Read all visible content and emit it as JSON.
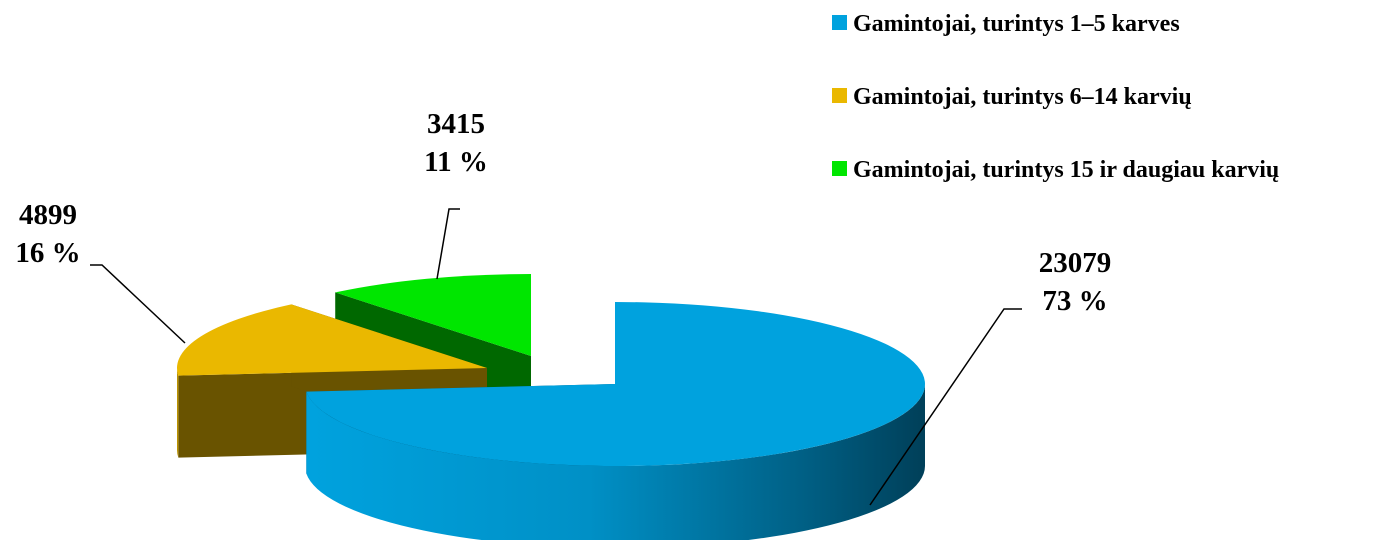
{
  "chart_data": {
    "type": "pie",
    "title": "",
    "three_d": true,
    "exploded": true,
    "legend_position": "top-right",
    "slices": [
      {
        "label": "Gamintojai, turintys 1–5 karves",
        "value": 23079,
        "percent": "73 %",
        "value_text": "23079",
        "color": "#00a2de"
      },
      {
        "label": "Gamintojai, turintys 6–14 karvių",
        "value": 4899,
        "percent": "16 %",
        "value_text": "4899",
        "color": "#eab800"
      },
      {
        "label": "Gamintojai, turintys 15 ir daugiau karvių",
        "value": 3415,
        "percent": "11 %",
        "value_text": "3415",
        "color": "#00e600"
      }
    ]
  }
}
